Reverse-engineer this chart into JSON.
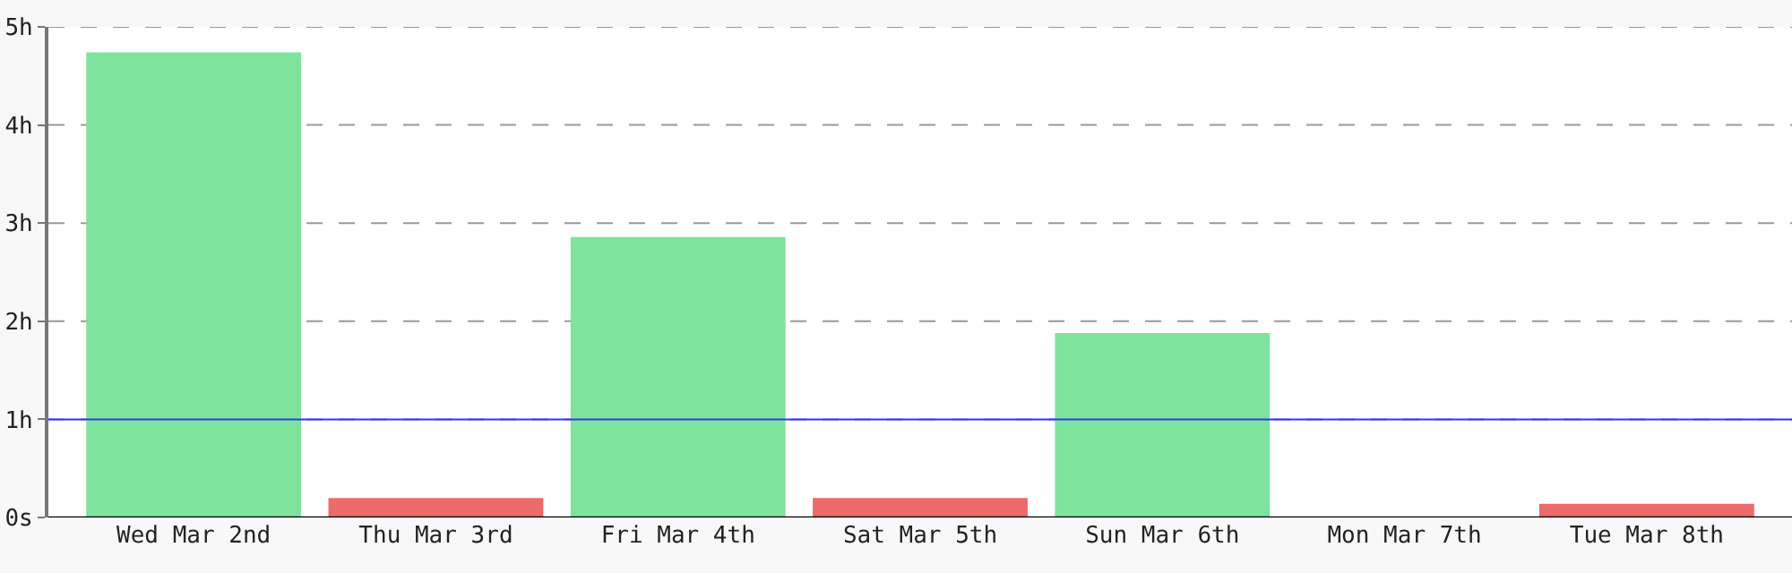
{
  "chart_data": {
    "type": "bar",
    "categories": [
      "Wed Mar 2nd",
      "Thu Mar 3rd",
      "Fri Mar 4th",
      "Sat Mar 5th",
      "Sun Mar 6th",
      "Mon Mar 7th",
      "Tue Mar 8th"
    ],
    "values": [
      4.73,
      0.19,
      2.85,
      0.19,
      1.87,
      0,
      0.13
    ],
    "colors": [
      "#7ee39d",
      "#eb6b6b",
      "#7ee39d",
      "#eb6b6b",
      "#7ee39d",
      "#eb6b6b",
      "#eb6b6b"
    ],
    "ylim": [
      0,
      5
    ],
    "yticks": [
      {
        "value": 0,
        "label": "0s"
      },
      {
        "value": 1,
        "label": "1h"
      },
      {
        "value": 2,
        "label": "2h"
      },
      {
        "value": 3,
        "label": "3h"
      },
      {
        "value": 4,
        "label": "4h"
      },
      {
        "value": 5,
        "label": "5h"
      }
    ],
    "grid": "y",
    "ref_lines": [
      {
        "axis": "y",
        "value": 1,
        "color": "#3333ff",
        "line_style": "solid"
      }
    ]
  }
}
